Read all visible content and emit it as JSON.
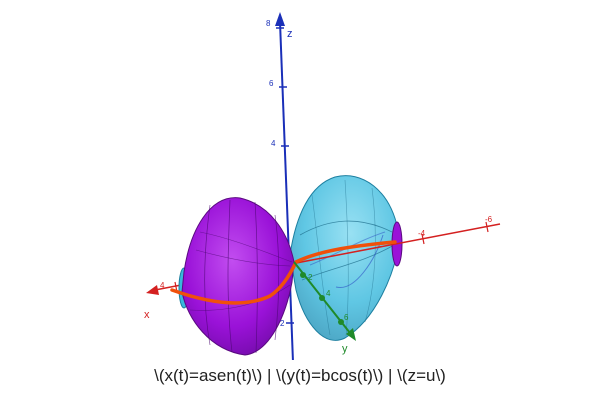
{
  "axes": {
    "x": {
      "label": "x",
      "ticks": [
        "4",
        "-4",
        "-6"
      ],
      "color": "#d42020"
    },
    "y": {
      "label": "y",
      "ticks": [
        "2",
        "4",
        "6"
      ],
      "color": "#1f8a2a"
    },
    "z": {
      "label": "z",
      "ticks": [
        "8",
        "6",
        "4",
        "2"
      ],
      "color": "#1a2fb8"
    }
  },
  "colors": {
    "surface_left": "#9a12d8",
    "surface_right": "#38b9dd",
    "curve": "#f0500a",
    "background": "#ffffff"
  },
  "caption": "\\(x(t)=asen(t)\\) | \\(y(t)=bcos(t)\\) | \\(z=u\\)"
}
